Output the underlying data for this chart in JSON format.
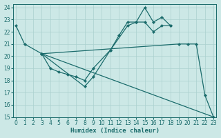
{
  "xlabel": "Humidex (Indice chaleur)",
  "bg_color": "#cce8e6",
  "grid_color": "#aad0ce",
  "line_color": "#1a6b6b",
  "xlim": [
    -0.3,
    23.3
  ],
  "ylim": [
    15,
    24.3
  ],
  "xticks": [
    0,
    1,
    2,
    3,
    4,
    5,
    6,
    7,
    8,
    9,
    10,
    11,
    12,
    13,
    14,
    15,
    16,
    17,
    18,
    19,
    20,
    21,
    22,
    23
  ],
  "yticks": [
    15,
    16,
    17,
    18,
    19,
    20,
    21,
    22,
    23,
    24
  ],
  "series": [
    {
      "x": [
        0,
        1,
        3,
        8,
        9,
        11,
        12,
        13,
        14,
        15,
        16,
        17,
        18
      ],
      "y": [
        22.5,
        21.0,
        20.2,
        17.5,
        18.3,
        20.5,
        21.7,
        22.8,
        22.8,
        24.0,
        22.8,
        23.2,
        22.5
      ]
    },
    {
      "x": [
        3,
        4,
        5,
        6,
        7,
        8,
        9,
        11,
        13,
        14,
        15,
        16,
        17,
        18
      ],
      "y": [
        20.2,
        19.0,
        18.7,
        18.5,
        18.3,
        18.0,
        19.0,
        20.5,
        22.5,
        22.8,
        22.8,
        22.0,
        22.5,
        22.5
      ]
    },
    {
      "x": [
        3,
        19,
        20,
        21,
        22,
        23
      ],
      "y": [
        20.2,
        21.0,
        21.0,
        21.0,
        16.8,
        15.0
      ]
    },
    {
      "x": [
        3,
        23
      ],
      "y": [
        20.2,
        15.0
      ]
    }
  ]
}
